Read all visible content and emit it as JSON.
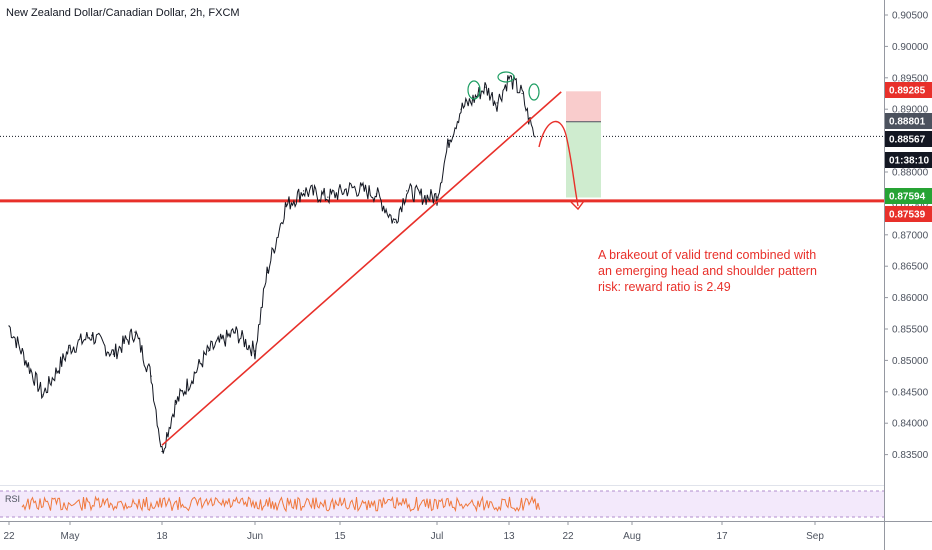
{
  "chart_data": {
    "type": "line",
    "title": "New Zealand Dollar/Canadian Dollar, 2h, FXCM",
    "y_axis": {
      "ticks": [
        "0.90500",
        "0.90000",
        "0.89500",
        "0.89000",
        "0.88500",
        "0.88000",
        "0.87500",
        "0.87000",
        "0.86500",
        "0.86000",
        "0.85500",
        "0.85000",
        "0.84500",
        "0.84000",
        "0.83500"
      ],
      "range": [
        0.8325,
        0.9075
      ]
    },
    "x_axis": {
      "ticks": [
        "22",
        "May",
        "18",
        "Jun",
        "15",
        "Jul",
        "13",
        "22",
        "Aug",
        "17",
        "Sep"
      ]
    },
    "price_series": {
      "name": "NZDCAD",
      "x": [
        "Apr 22",
        "Apr 27",
        "May 1",
        "May 5",
        "May 9",
        "May 13",
        "May 16",
        "May 18",
        "May 20",
        "May 25",
        "May 29",
        "Jun 1",
        "Jun 3",
        "Jun 6",
        "Jun 9",
        "Jun 13",
        "Jun 17",
        "Jun 21",
        "Jun 24",
        "Jun 26",
        "Jun 29",
        "Jul 1",
        "Jul 3",
        "Jul 5",
        "Jul 7",
        "Jul 9",
        "Jul 11",
        "Jul 13",
        "Jul 15",
        "Jul 16",
        "Jul 17"
      ],
      "y": [
        0.8555,
        0.8445,
        0.852,
        0.854,
        0.851,
        0.8545,
        0.8475,
        0.8355,
        0.843,
        0.8515,
        0.8545,
        0.8515,
        0.864,
        0.8745,
        0.877,
        0.876,
        0.8775,
        0.8765,
        0.872,
        0.877,
        0.876,
        0.876,
        0.885,
        0.89,
        0.8915,
        0.8935,
        0.891,
        0.895,
        0.8925,
        0.8885,
        0.8856
      ]
    },
    "rsi_label": "RSI",
    "price_tags": [
      {
        "value": "0.89285",
        "color": "#e8302a"
      },
      {
        "value": "0.88801",
        "color": "#4c525e"
      },
      {
        "value": "0.88567",
        "color": "#131722"
      },
      {
        "value": "01:38:10",
        "color": "#131722"
      },
      {
        "value": "0.87594",
        "color": "#26a334"
      },
      {
        "value": "0.87539",
        "color": "#e8302a"
      }
    ],
    "annotations": {
      "note_lines": [
        "A brakeout of valid trend combined with",
        "an emerging head and shoulder pattern",
        "risk: reward ratio is 2.49"
      ],
      "horizontal_support": 0.8754,
      "trendline": {
        "from": [
          "May 18",
          0.8365
        ],
        "to": [
          "Jul 17",
          0.8918
        ]
      },
      "stop_loss": 0.89285,
      "entry": 0.88801,
      "take_profit": 0.87594
    },
    "colors": {
      "line": "#131722",
      "annotation": "#e8302a",
      "profit_zone": "#cfeccf",
      "loss_zone": "#f9cccc",
      "rsi": "#f0783c"
    },
    "grid": false,
    "legend": "none"
  }
}
